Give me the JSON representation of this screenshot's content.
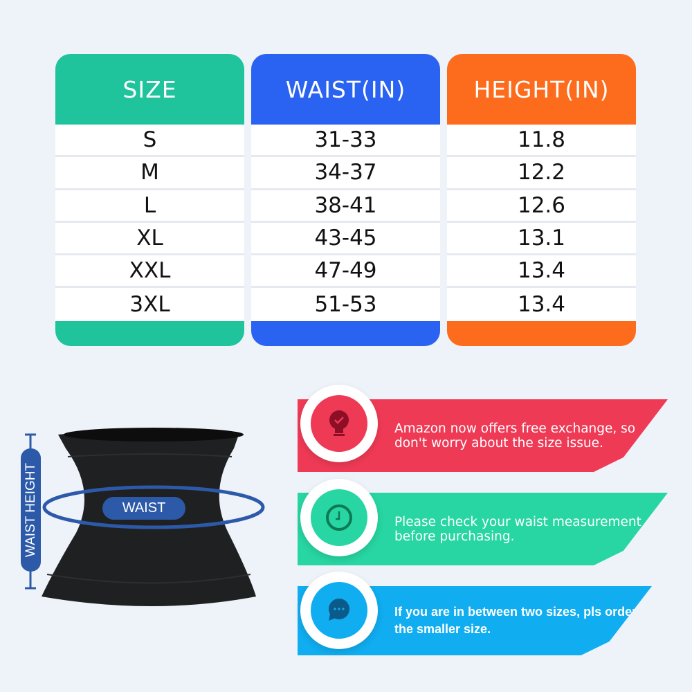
{
  "colors": {
    "size": "#1fc39c",
    "waist": "#2a62f2",
    "height": "#fd6b1c",
    "tip1": "#ef3a56",
    "tip2": "#27d6a2",
    "tip3": "#10adf0",
    "measure": "#2c5aa8"
  },
  "table": {
    "headers": [
      "SIZE",
      "WAIST(IN)",
      "HEIGHT(IN)"
    ],
    "sizes": [
      "S",
      "M",
      "L",
      "XL",
      "XXL",
      "3XL"
    ],
    "waist": [
      "31-33",
      "34-37",
      "38-41",
      "43-45",
      "47-49",
      "51-53"
    ],
    "height": [
      "11.8",
      "12.2",
      "12.6",
      "13.1",
      "13.4",
      "13.4"
    ]
  },
  "diagram": {
    "waist_label": "WAIST",
    "height_label": "WAIST HEIGHT"
  },
  "tips": [
    {
      "icon": "lightbulb-check-icon",
      "text": "Amazon now offers free exchange, so don't worry about the size issue."
    },
    {
      "icon": "clock-icon",
      "text": "Please check your waist measurement before purchasing."
    },
    {
      "icon": "chat-bubble-icon",
      "text": "If you are in between two sizes, pls order the smaller size."
    }
  ]
}
